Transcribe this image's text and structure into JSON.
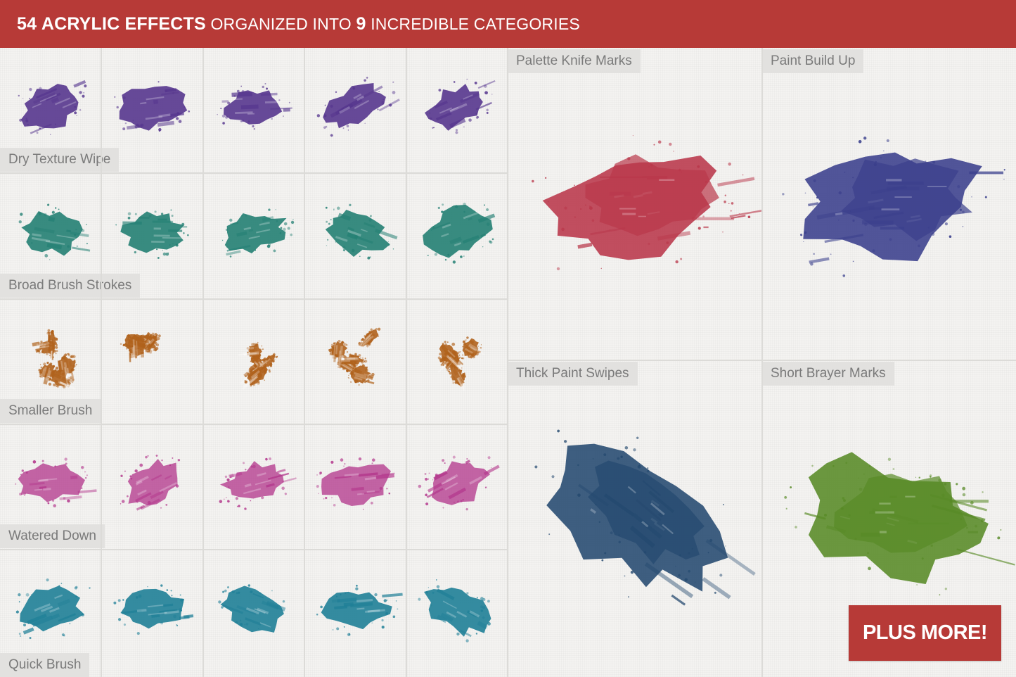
{
  "header": {
    "count": "54",
    "title_bold": "ACRYLIC EFFECTS",
    "title_mid": "ORGANIZED INTO",
    "category_count": "9",
    "title_end": "INCREDIBLE CATEGORIES"
  },
  "rows": [
    {
      "label": "Dry Texture Wipe",
      "color": "#56368e"
    },
    {
      "label": "Broad Brush Strokes",
      "color": "#237f73"
    },
    {
      "label": "Smaller Brush",
      "color": "#b0621c"
    },
    {
      "label": "Watered Down",
      "color": "#b2338a"
    },
    {
      "label": "Quick Brush",
      "color": "#1f7f97"
    }
  ],
  "panels": [
    {
      "label": "Palette Knife Marks",
      "color": "#b9374a"
    },
    {
      "label": "Paint Build Up",
      "color": "#3a3f8c"
    },
    {
      "label": "Thick Paint Swipes",
      "color": "#24496f"
    },
    {
      "label": "Short Brayer Marks",
      "color": "#588a26"
    }
  ],
  "cta": {
    "label": "PLUS MORE!",
    "color": "#b73a37"
  }
}
